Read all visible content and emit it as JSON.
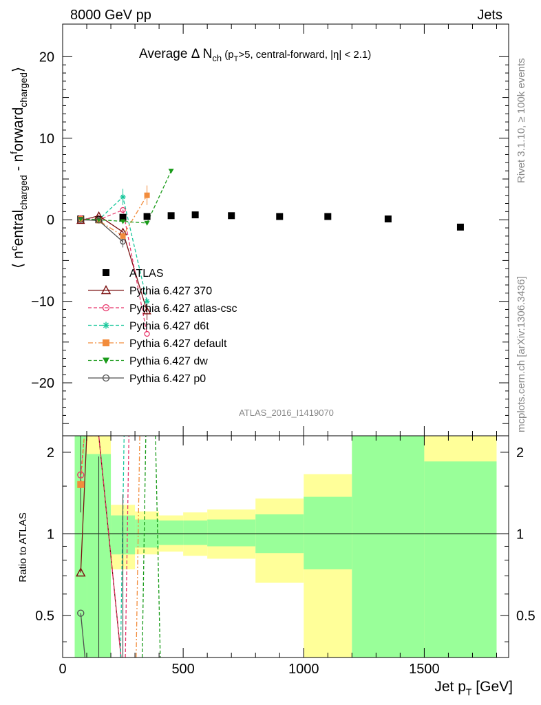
{
  "header": {
    "left": "8000 GeV pp",
    "right": "Jets"
  },
  "side_labels": {
    "rivet": "Rivet 3.1.10, ≥ 100k events",
    "mcplots": "mcplots.cern.ch [arXiv:1306.3436]"
  },
  "title": {
    "main": "Average Δ N",
    "ch": "ch",
    "rest1": " (p",
    "T": "T",
    "rest2": ">5, central-forward, |η| < 2.1)"
  },
  "watermark": "ATLAS_2016_I1419070",
  "ylabel_main": {
    "open": "⟨ n",
    "c": "c",
    "entral": "entral",
    "charged1": "charged",
    "mid": " - n",
    "f": "f",
    "orward": "orward",
    "charged2": "charged",
    "close": "⟩"
  },
  "ylabel_ratio": "Ratio to ATLAS",
  "xlabel": {
    "main": "Jet p",
    "sub": "T",
    "unit": " [GeV]"
  },
  "chart_data": [
    {
      "type": "scatter",
      "panel": "main",
      "xlim": [
        0,
        1850
      ],
      "ylim": [
        -26.5,
        24
      ],
      "x_ticks": [
        0,
        500,
        1000,
        1500
      ],
      "y_ticks": [
        -20,
        -10,
        0,
        10,
        20
      ],
      "legend_position": "middle-left",
      "series": [
        {
          "name": "ATLAS",
          "color": "#000000",
          "marker": "square-filled",
          "line": "none",
          "x": [
            75,
            150,
            250,
            350,
            450,
            550,
            700,
            900,
            1100,
            1350,
            1650
          ],
          "y": [
            0.1,
            0.0,
            0.3,
            0.4,
            0.5,
            0.6,
            0.5,
            0.4,
            0.4,
            0.1,
            -0.9
          ]
        },
        {
          "name": "Pythia 6.427 370",
          "color": "#7b1010",
          "marker": "triangle-open",
          "line": "solid",
          "x": [
            75,
            150,
            250,
            350
          ],
          "y": [
            -0.1,
            0.5,
            -1.5,
            -11.2
          ]
        },
        {
          "name": "Pythia 6.427 atlas-csc",
          "color": "#e8356a",
          "marker": "circle-open",
          "line": "dashed",
          "x": [
            75,
            150,
            250,
            350
          ],
          "y": [
            0.2,
            0.0,
            1.2,
            -14.0
          ]
        },
        {
          "name": "Pythia 6.427 d6t",
          "color": "#18c79b",
          "marker": "star",
          "line": "dashed",
          "x": [
            75,
            150,
            250,
            350
          ],
          "y": [
            0.1,
            0.0,
            2.8,
            -10.0
          ]
        },
        {
          "name": "Pythia 6.427 default",
          "color": "#f28c3c",
          "marker": "square-filled",
          "line": "dashdot",
          "x": [
            75,
            150,
            250,
            350
          ],
          "y": [
            0.1,
            -0.1,
            -2.0,
            3.0
          ]
        },
        {
          "name": "Pythia 6.427 dw",
          "color": "#1a9b1a",
          "marker": "triangle-down-filled",
          "line": "dashed",
          "x": [
            75,
            150,
            250,
            350,
            450
          ],
          "y": [
            0.1,
            0.0,
            -0.2,
            -0.4,
            6.0
          ]
        },
        {
          "name": "Pythia 6.427 p0",
          "color": "#505050",
          "marker": "circle-open",
          "line": "solid",
          "x": [
            75,
            150,
            250
          ],
          "y": [
            0.0,
            -0.1,
            -2.7
          ]
        }
      ]
    },
    {
      "type": "line",
      "panel": "ratio",
      "xlim": [
        0,
        1850
      ],
      "ylim": [
        0.35,
        2.3
      ],
      "y_ticks": [
        0.5,
        1,
        2
      ],
      "reference_line": 1,
      "bands": [
        {
          "xlo": 50,
          "xhi": 100,
          "yellow": [
            0.35,
            2.3
          ],
          "green": [
            0.35,
            2.3
          ]
        },
        {
          "xlo": 100,
          "xhi": 200,
          "yellow": [
            0.35,
            2.3
          ],
          "green": [
            0.35,
            1.97
          ]
        },
        {
          "xlo": 200,
          "xhi": 300,
          "yellow": [
            0.74,
            1.28
          ],
          "green": [
            0.84,
            1.17
          ]
        },
        {
          "xlo": 300,
          "xhi": 400,
          "yellow": [
            0.84,
            1.21
          ],
          "green": [
            0.89,
            1.13
          ]
        },
        {
          "xlo": 400,
          "xhi": 500,
          "yellow": [
            0.86,
            1.17
          ],
          "green": [
            0.91,
            1.12
          ]
        },
        {
          "xlo": 500,
          "xhi": 600,
          "yellow": [
            0.83,
            1.2
          ],
          "green": [
            0.91,
            1.12
          ]
        },
        {
          "xlo": 600,
          "xhi": 800,
          "yellow": [
            0.81,
            1.23
          ],
          "green": [
            0.9,
            1.13
          ]
        },
        {
          "xlo": 800,
          "xhi": 1000,
          "yellow": [
            0.66,
            1.35
          ],
          "green": [
            0.85,
            1.18
          ]
        },
        {
          "xlo": 1000,
          "xhi": 1200,
          "yellow": [
            0.35,
            1.66
          ],
          "green": [
            0.74,
            1.37
          ]
        },
        {
          "xlo": 1200,
          "xhi": 1500,
          "yellow": [
            0.35,
            2.3
          ],
          "green": [
            0.35,
            2.3
          ]
        },
        {
          "xlo": 1500,
          "xhi": 1800,
          "yellow": [
            0.35,
            2.3
          ],
          "green": [
            0.35,
            1.85
          ]
        }
      ],
      "series": [
        {
          "name": "Pythia 6.427 370",
          "x": [
            75,
            100,
            150,
            250
          ],
          "y": [
            0.72,
            2.3,
            2.3,
            0.3
          ]
        },
        {
          "name": "Pythia 6.427 atlas-csc",
          "x": [
            75,
            90,
            110,
            150,
            250
          ],
          "y": [
            1.65,
            2.3,
            2.3,
            2.3,
            0.3
          ]
        },
        {
          "name": "Pythia 6.427 default",
          "x": [
            75,
            90
          ],
          "y": [
            1.52,
            2.3
          ]
        },
        {
          "name": "Pythia 6.427 p0",
          "x": [
            75,
            100
          ],
          "y": [
            0.51,
            0.3
          ]
        }
      ]
    }
  ]
}
